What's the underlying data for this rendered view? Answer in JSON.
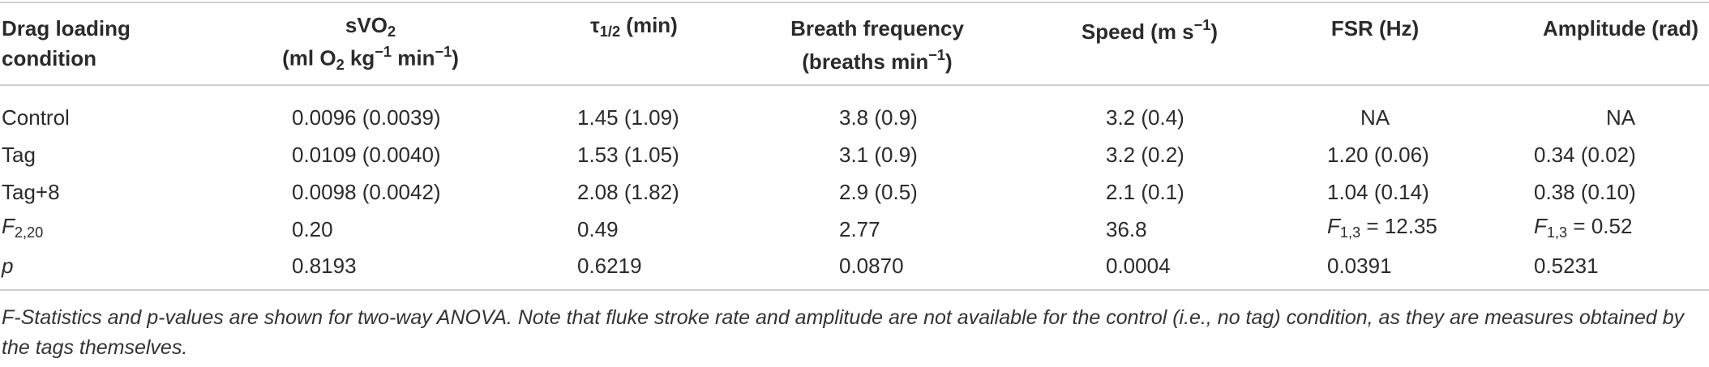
{
  "table": {
    "header": [
      [
        [
          {
            "text": "Drag loading"
          }
        ],
        [
          {
            "text": "condition"
          }
        ]
      ],
      [
        [
          {
            "text": "sVO"
          },
          {
            "sub": "2"
          }
        ],
        [
          {
            "text": "(ml O"
          },
          {
            "sub": "2"
          },
          {
            "text": " kg"
          },
          {
            "sup": "−1"
          },
          {
            "text": " min"
          },
          {
            "sup": "−1"
          },
          {
            "text": ")"
          }
        ]
      ],
      [
        [
          {
            "text": "τ"
          },
          {
            "sub": "1/2"
          },
          {
            "text": " (min)"
          }
        ]
      ],
      [
        [
          {
            "text": "Breath frequency"
          }
        ],
        [
          {
            "text": "(breaths min"
          },
          {
            "sup": "−1"
          },
          {
            "text": ")"
          }
        ]
      ],
      [
        [
          {
            "text": "Speed (m s"
          },
          {
            "sup": "−1"
          },
          {
            "text": ")"
          }
        ]
      ],
      [
        [
          {
            "text": "FSR (Hz)"
          }
        ]
      ],
      [
        [
          {
            "text": "Amplitude (rad)"
          }
        ]
      ]
    ],
    "rows": [
      [
        "Control",
        "0.0096 (0.0039)",
        "1.45 (1.09)",
        "3.8 (0.9)",
        "3.2 (0.4)",
        "NA",
        "NA"
      ],
      [
        "Tag",
        "0.0109 (0.0040)",
        "1.53 (1.05)",
        "3.1 (0.9)",
        "3.2 (0.2)",
        "1.20 (0.06)",
        "0.34 (0.02)"
      ],
      [
        "Tag+8",
        "0.0098 (0.0042)",
        "2.08 (1.82)",
        "2.9 (0.5)",
        "2.1 (0.1)",
        "1.04 (0.14)",
        "0.38 (0.10)"
      ],
      [
        [
          {
            "italic": "F"
          },
          {
            "sub": "2,20"
          }
        ],
        "0.20",
        "0.49",
        "2.77",
        "36.8",
        [
          {
            "italic": "F"
          },
          {
            "sub": "1,3"
          },
          {
            "text": " = 12.35"
          }
        ],
        [
          {
            "italic": "F"
          },
          {
            "sub": "1,3"
          },
          {
            "text": " = 0.52"
          }
        ]
      ],
      [
        [
          {
            "italic": "p"
          }
        ],
        "0.8193",
        "0.6219",
        "0.0870",
        "0.0004",
        "0.0391",
        "0.5231"
      ]
    ]
  },
  "footnote": "F-Statistics and p-values are shown for two-way ANOVA. Note that fluke stroke rate and amplitude are not available for the control (i.e., no tag) condition, as they are measures obtained by the tags themselves."
}
